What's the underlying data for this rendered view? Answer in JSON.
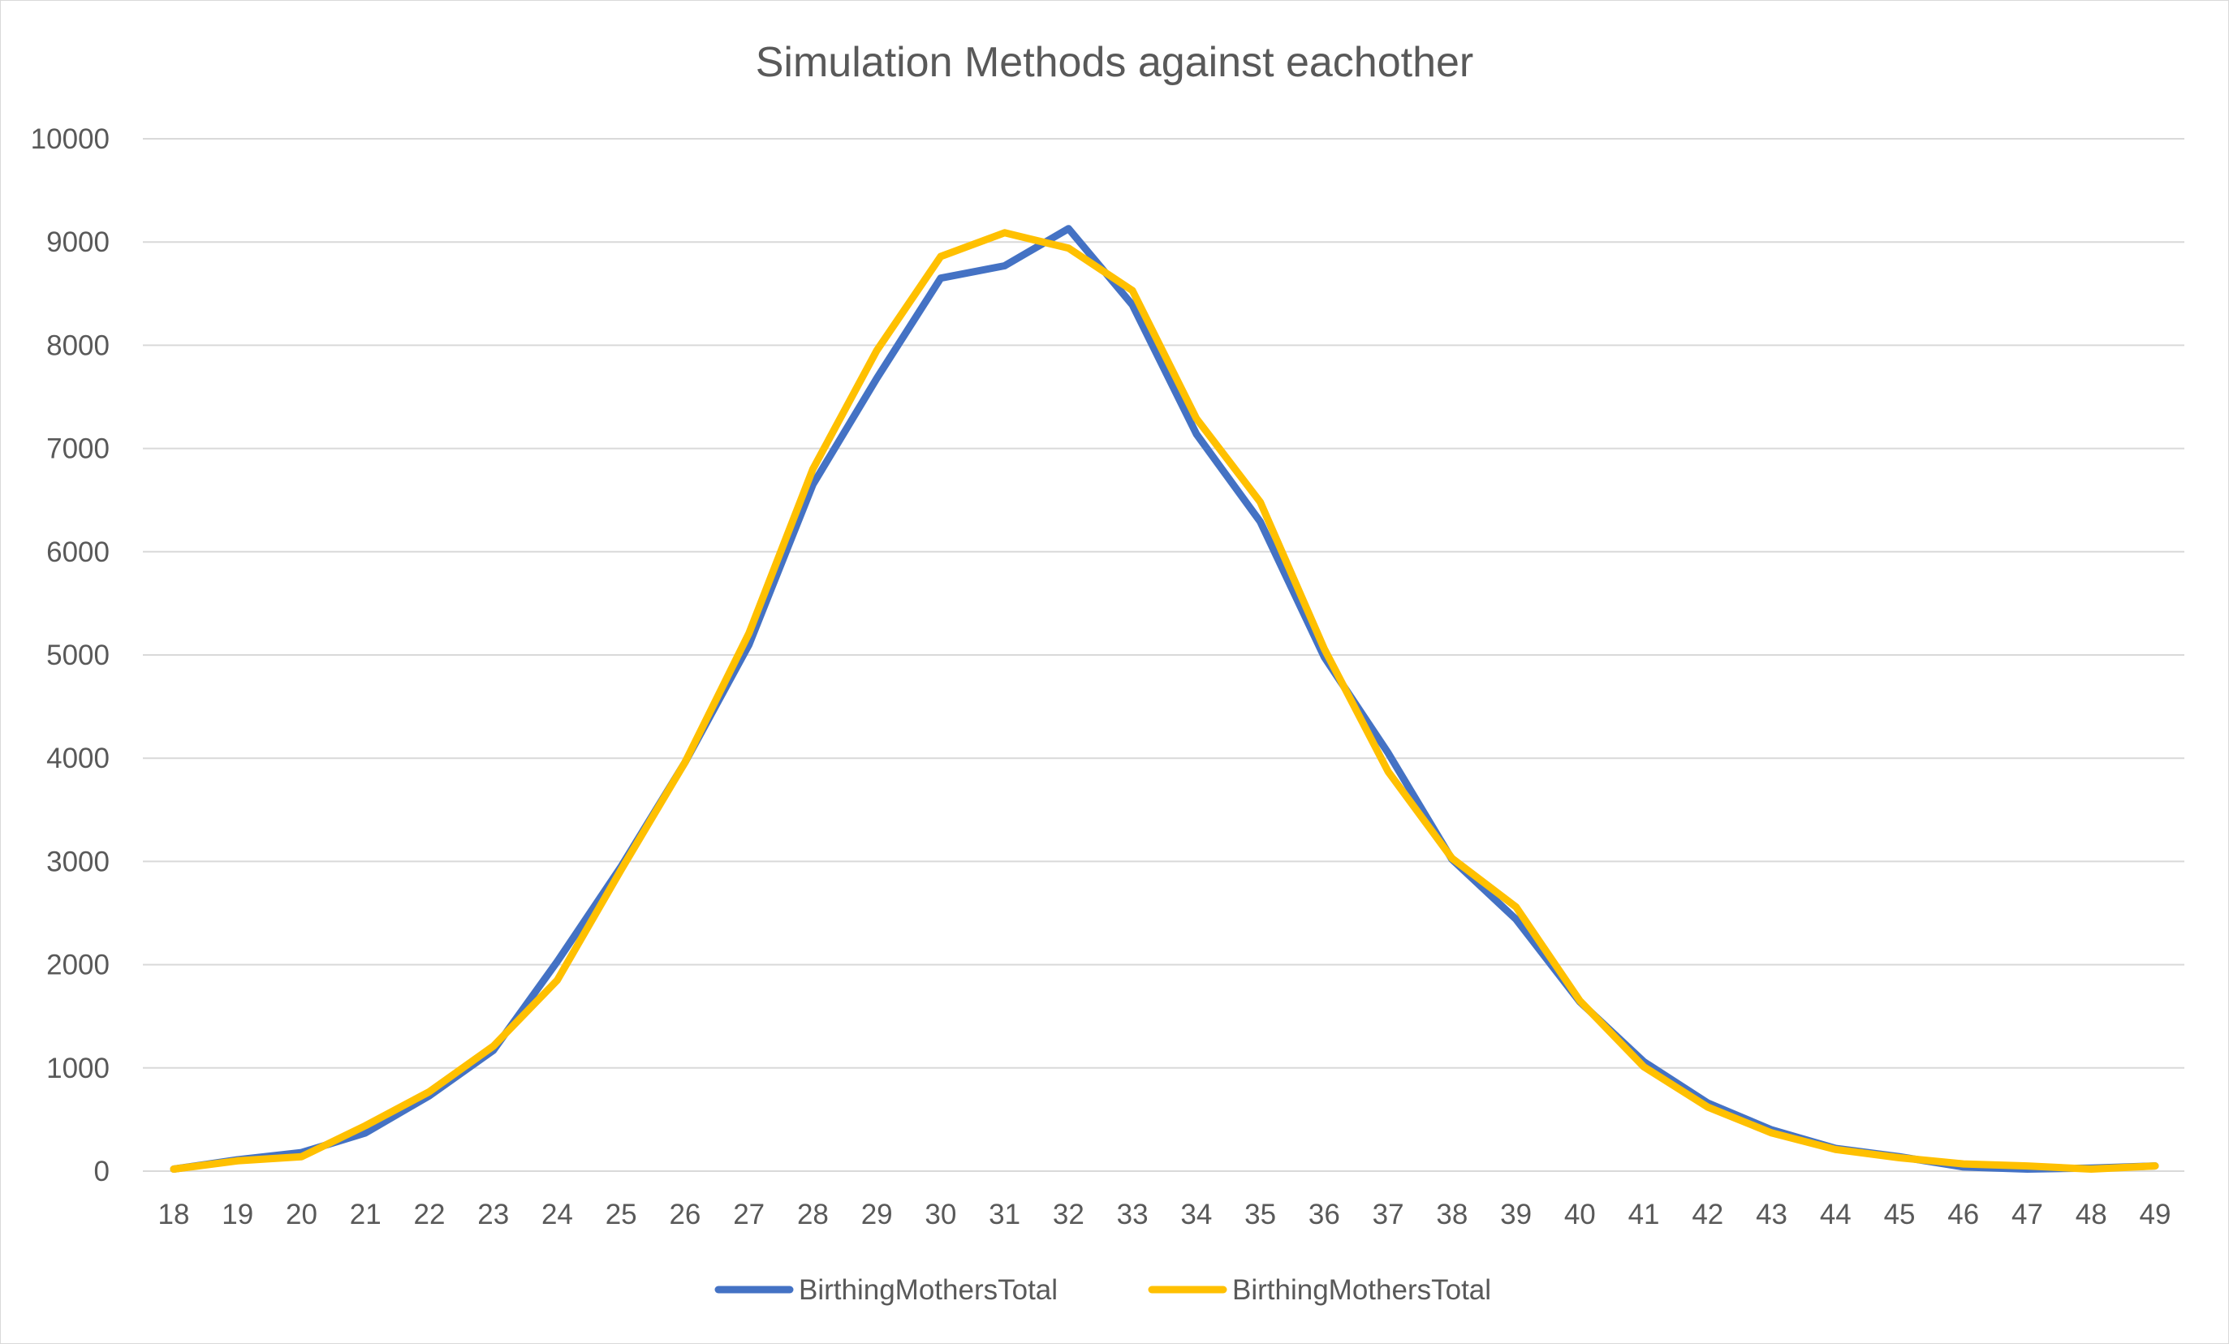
{
  "chart_data": {
    "type": "line",
    "title": "Simulation Methods against eachother",
    "xlabel": "",
    "ylabel": "",
    "categories": [
      "18",
      "19",
      "20",
      "21",
      "22",
      "23",
      "24",
      "25",
      "26",
      "27",
      "28",
      "29",
      "30",
      "31",
      "32",
      "33",
      "34",
      "35",
      "36",
      "37",
      "38",
      "39",
      "40",
      "41",
      "42",
      "43",
      "44",
      "45",
      "46",
      "47",
      "48",
      "49"
    ],
    "ylim": [
      0,
      10000
    ],
    "yticks": [
      "0",
      "1000",
      "2000",
      "3000",
      "4000",
      "5000",
      "6000",
      "7000",
      "8000",
      "9000",
      "10000"
    ],
    "grid": true,
    "legend_position": "bottom",
    "series": [
      {
        "name": "BirthingMothersTotal",
        "color": "#4472C4",
        "values": [
          20,
          110,
          180,
          370,
          730,
          1170,
          2030,
          2950,
          3960,
          5100,
          6650,
          7680,
          8650,
          8770,
          9130,
          8390,
          7140,
          6290,
          4980,
          4050,
          3020,
          2440,
          1640,
          1060,
          660,
          400,
          220,
          140,
          40,
          20,
          30,
          50
        ]
      },
      {
        "name": "BirthingMothersTotal",
        "color": "#FFC000",
        "values": [
          20,
          100,
          140,
          440,
          770,
          1210,
          1850,
          2920,
          3960,
          5210,
          6800,
          7950,
          8860,
          9090,
          8940,
          8530,
          7290,
          6480,
          5060,
          3870,
          3030,
          2560,
          1650,
          1010,
          620,
          370,
          210,
          130,
          70,
          50,
          20,
          50
        ]
      }
    ]
  }
}
